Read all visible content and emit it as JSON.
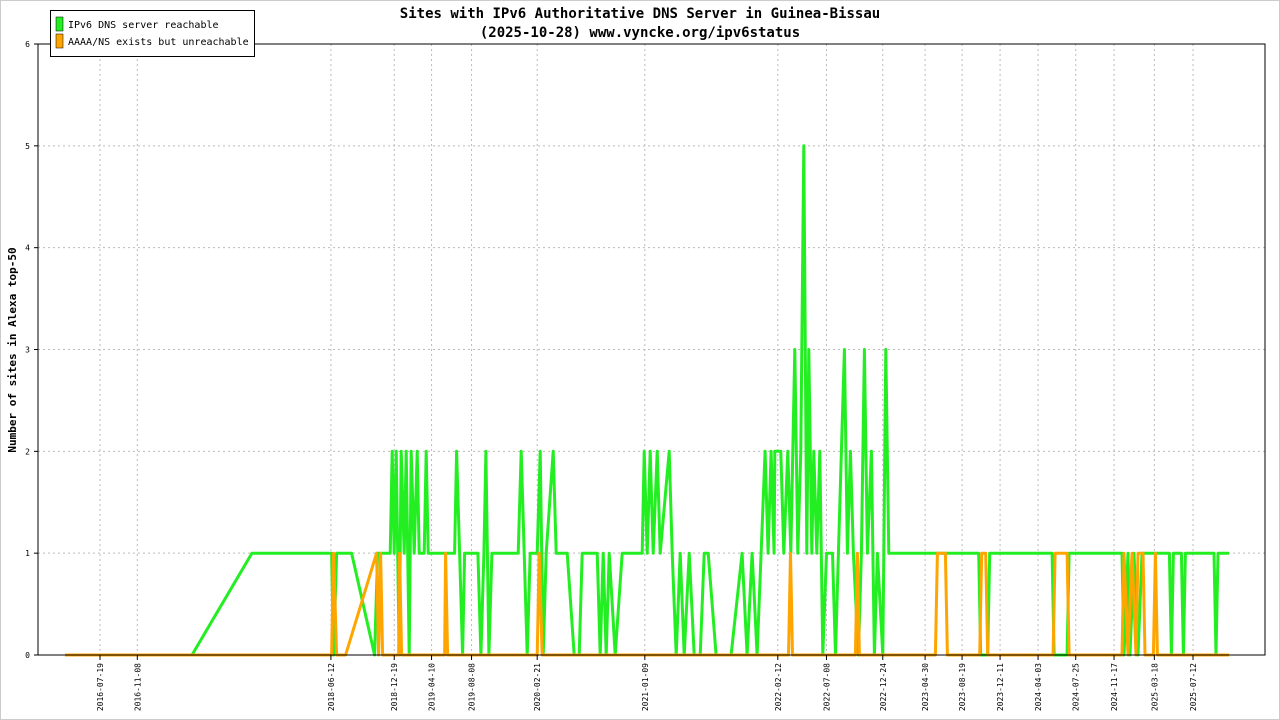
{
  "chart_data": {
    "type": "line",
    "title": "Sites with IPv6 Authoritative DNS Server in Guinea-Bissau",
    "subtitle": "(2025-10-28) www.vyncke.org/ipv6status",
    "y_label": "Number of sites in Alexa top-50",
    "xlim": [
      "2016-01-15",
      "2026-02-13"
    ],
    "xticks": [
      "2016-07-19",
      "2016-11-08",
      "2018-06-12",
      "2018-12-19",
      "2019-04-10",
      "2019-08-08",
      "2020-02-21",
      "2021-01-09",
      "2022-02-12",
      "2022-07-08",
      "2022-12-24",
      "2023-04-30",
      "2023-08-19",
      "2023-12-11",
      "2024-04-03",
      "2024-07-25",
      "2024-11-17",
      "2025-03-18",
      "2025-07-12"
    ],
    "ylim": [
      0,
      6
    ],
    "yticks": [
      0,
      1,
      2,
      3,
      4,
      5,
      6
    ],
    "grid": true,
    "legend": "top-left",
    "series": [
      {
        "name": "IPv6 DNS server reachable",
        "color": "#22ee22",
        "x": [
          "2016-04-05",
          "2017-04-21",
          "2017-10-18",
          "2018-06-14",
          "2018-06-20",
          "2018-06-29",
          "2018-08-13",
          "2018-10-21",
          "2018-10-30",
          "2018-12-07",
          "2018-12-13",
          "2018-12-19",
          "2018-12-25",
          "2019-01-03",
          "2019-01-09",
          "2019-01-18",
          "2019-01-24",
          "2019-02-02",
          "2019-02-08",
          "2019-02-17",
          "2019-02-26",
          "2019-03-04",
          "2019-03-19",
          "2019-03-25",
          "2019-03-31",
          "2019-06-18",
          "2019-06-24",
          "2019-07-03",
          "2019-07-12",
          "2019-07-18",
          "2019-08-27",
          "2019-09-05",
          "2019-09-14",
          "2019-09-20",
          "2019-09-29",
          "2019-10-08",
          "2019-12-26",
          "2020-01-04",
          "2020-01-13",
          "2020-01-22",
          "2020-01-31",
          "2020-02-21",
          "2020-03-01",
          "2020-03-10",
          "2020-03-19",
          "2020-04-09",
          "2020-04-18",
          "2020-05-21",
          "2020-06-11",
          "2020-06-26",
          "2020-07-05",
          "2020-08-19",
          "2020-08-28",
          "2020-09-06",
          "2020-09-15",
          "2020-09-24",
          "2020-10-12",
          "2020-11-02",
          "2021-01-01",
          "2021-01-07",
          "2021-01-16",
          "2021-01-25",
          "2021-02-03",
          "2021-02-15",
          "2021-02-24",
          "2021-03-23",
          "2021-04-01",
          "2021-04-13",
          "2021-04-25",
          "2021-05-07",
          "2021-05-22",
          "2021-06-06",
          "2021-06-24",
          "2021-07-06",
          "2021-07-18",
          "2021-08-11",
          "2021-09-25",
          "2021-10-28",
          "2021-11-12",
          "2021-11-27",
          "2021-12-12",
          "2021-12-24",
          "2022-01-05",
          "2022-01-14",
          "2022-01-23",
          "2022-02-01",
          "2022-02-03",
          "2022-02-21",
          "2022-03-02",
          "2022-03-14",
          "2022-03-23",
          "2022-04-04",
          "2022-04-13",
          "2022-04-22",
          "2022-05-01",
          "2022-05-10",
          "2022-05-16",
          "2022-05-25",
          "2022-05-31",
          "2022-06-09",
          "2022-06-18",
          "2022-06-27",
          "2022-07-08",
          "2022-07-26",
          "2022-08-04",
          "2022-08-13",
          "2022-08-31",
          "2022-09-09",
          "2022-09-18",
          "2022-09-27",
          "2022-10-12",
          "2022-10-21",
          "2022-10-30",
          "2022-11-08",
          "2022-11-20",
          "2022-11-29",
          "2022-12-08",
          "2022-12-24",
          "2023-01-02",
          "2023-01-11",
          "2023-10-08",
          "2023-10-14",
          "2023-11-04",
          "2023-11-10",
          "2024-05-15",
          "2024-05-21",
          "2024-06-29",
          "2024-07-05",
          "2024-12-11",
          "2024-12-17",
          "2024-12-29",
          "2025-01-04",
          "2025-01-16",
          "2025-01-28",
          "2025-02-09",
          "2025-05-02",
          "2025-05-08",
          "2025-05-14",
          "2025-06-07",
          "2025-06-13",
          "2025-06-19",
          "2025-09-13",
          "2025-09-19",
          "2025-09-25",
          "2025-10-28"
        ],
        "values": [
          0,
          0,
          1,
          1,
          0,
          1,
          1,
          0,
          1,
          1,
          2,
          1,
          2,
          0,
          2,
          1,
          2,
          0,
          2,
          1,
          2,
          1,
          1,
          2,
          1,
          1,
          2,
          1,
          0,
          1,
          1,
          0,
          1,
          2,
          0,
          1,
          1,
          2,
          1,
          0,
          1,
          1,
          2,
          0,
          1,
          2,
          1,
          1,
          0,
          0,
          1,
          1,
          0,
          1,
          0,
          1,
          0,
          1,
          1,
          2,
          1,
          2,
          1,
          2,
          1,
          2,
          1,
          0,
          1,
          0,
          1,
          0,
          0,
          1,
          1,
          0,
          0,
          1,
          0,
          1,
          0,
          1,
          2,
          1,
          2,
          1,
          2,
          2,
          1,
          2,
          1,
          3,
          1,
          2,
          5,
          1,
          3,
          1,
          2,
          1,
          2,
          0,
          1,
          1,
          0,
          1,
          3,
          1,
          2,
          1,
          0,
          1,
          3,
          1,
          2,
          0,
          1,
          0,
          3,
          1,
          1,
          0,
          0,
          1,
          1,
          0,
          0,
          1,
          1,
          0,
          1,
          0,
          1,
          0,
          1,
          1,
          0,
          1,
          1,
          0,
          1,
          1,
          0,
          1,
          1
        ]
      },
      {
        "name": "AAAA/NS exists but unreachable",
        "color": "#ffa500",
        "x": [
          "2016-04-05",
          "2018-06-14",
          "2018-06-20",
          "2018-06-29",
          "2018-07-26",
          "2018-10-27",
          "2018-11-02",
          "2018-11-08",
          "2018-11-14",
          "2019-01-01",
          "2019-01-04",
          "2019-01-10",
          "2019-05-19",
          "2019-05-22",
          "2019-05-28",
          "2020-02-21",
          "2020-02-27",
          "2020-03-07",
          "2022-03-16",
          "2022-03-22",
          "2022-03-28",
          "2022-10-03",
          "2022-10-09",
          "2022-10-15",
          "2023-05-31",
          "2023-06-06",
          "2023-06-30",
          "2023-07-06",
          "2023-10-11",
          "2023-10-17",
          "2023-10-29",
          "2023-11-04",
          "2024-05-18",
          "2024-05-24",
          "2024-06-29",
          "2024-07-05",
          "2024-12-11",
          "2024-12-17",
          "2024-12-29",
          "2025-01-10",
          "2025-01-22",
          "2025-01-28",
          "2025-02-12",
          "2025-02-18",
          "2025-03-15",
          "2025-03-21",
          "2025-03-27",
          "2025-10-28"
        ],
        "values": [
          0,
          0,
          1,
          0,
          0,
          1,
          0,
          1,
          0,
          0,
          1,
          0,
          0,
          1,
          0,
          0,
          1,
          0,
          0,
          1,
          0,
          0,
          1,
          0,
          0,
          1,
          1,
          0,
          0,
          1,
          1,
          0,
          0,
          1,
          1,
          0,
          0,
          1,
          0,
          1,
          0,
          1,
          1,
          0,
          0,
          1,
          0,
          0
        ]
      }
    ]
  }
}
